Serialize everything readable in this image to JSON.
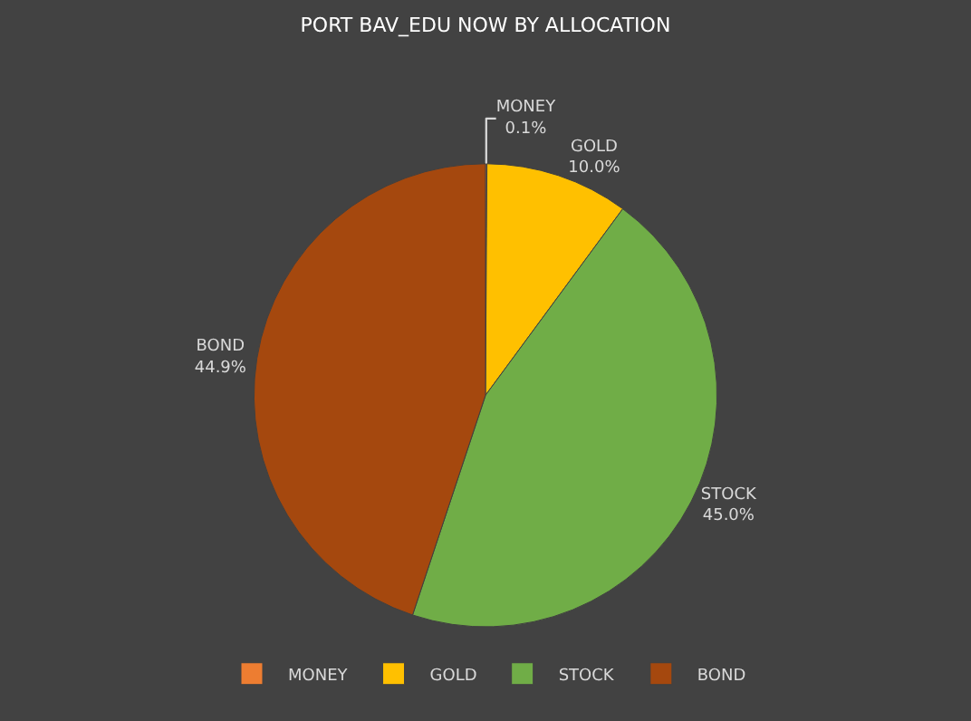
{
  "chart_data": {
    "type": "pie",
    "title": "PORT BAV_EDU NOW BY ALLOCATION",
    "categories": [
      "MONEY",
      "GOLD",
      "STOCK",
      "BOND"
    ],
    "values": [
      0.1,
      10.0,
      45.0,
      44.9
    ],
    "value_labels": [
      "0.1%",
      "10.0%",
      "45.0%",
      "44.9%"
    ],
    "colors": [
      "#ed7d31",
      "#ffc000",
      "#70ad47",
      "#a5480e"
    ],
    "legend": "bottom"
  }
}
